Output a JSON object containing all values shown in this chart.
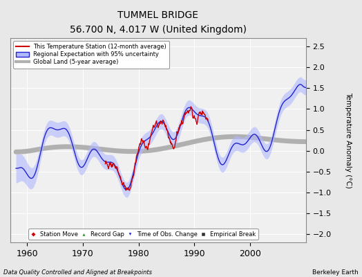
{
  "title": "TUMMEL BRIDGE",
  "subtitle": "56.700 N, 4.017 W (United Kingdom)",
  "ylabel": "Temperature Anomaly (°C)",
  "xlabel_left": "Data Quality Controlled and Aligned at Breakpoints",
  "xlabel_right": "Berkeley Earth",
  "xlim": [
    1957,
    2010
  ],
  "ylim": [
    -2.2,
    2.7
  ],
  "yticks": [
    -2,
    -1.5,
    -1,
    -0.5,
    0,
    0.5,
    1,
    1.5,
    2,
    2.5
  ],
  "xticks": [
    1960,
    1970,
    1980,
    1990,
    2000
  ],
  "bg_color": "#e8e8e8",
  "plot_bg_color": "#f0f0f0",
  "region_fill_color": "#b0b8ff",
  "region_line_color": "#2222cc",
  "station_color": "#cc0000",
  "global_color": "#b0b0b0",
  "grid_color": "#ffffff",
  "legend_line_label": "This Temperature Station (12-month average)",
  "legend_region_label": "Regional Expectation with 95% uncertainty",
  "legend_global_label": "Global Land (5-year average)",
  "marker_labels": [
    "Station Move",
    "Record Gap",
    "Time of Obs. Change",
    "Empirical Break"
  ],
  "marker_colors": [
    "#cc0000",
    "#228B22",
    "#2222cc",
    "#333333"
  ],
  "marker_shapes": [
    "D",
    "^",
    "v",
    "s"
  ]
}
